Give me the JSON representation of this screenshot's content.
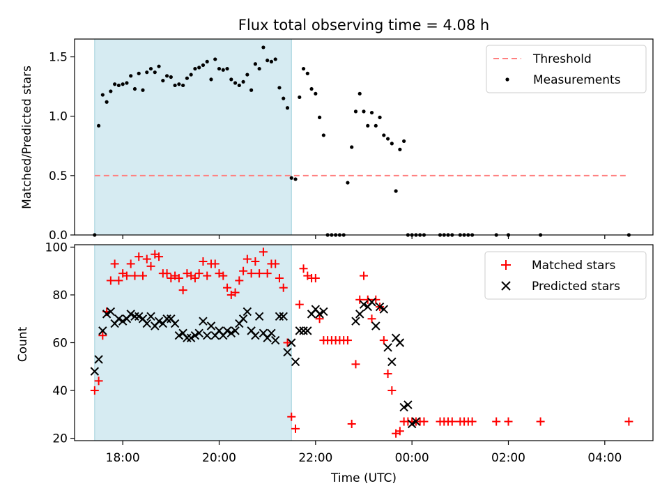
{
  "chart_data": [
    {
      "type": "scatter",
      "title": "Flux total observing time = 4.08 h",
      "xlabel": "",
      "ylabel": "Matched/Predicted stars",
      "xlim": [
        "17:00",
        "05:00"
      ],
      "ylim": [
        0,
        1.65
      ],
      "yticks": [
        0.0,
        0.5,
        1.0,
        1.5
      ],
      "ytick_labels": [
        "0.0",
        "0.5",
        "1.0",
        "1.5"
      ],
      "shaded_interval": [
        "17:25",
        "21:30"
      ],
      "legend_position": "top-right",
      "series": [
        {
          "name": "Threshold",
          "kind": "dashed-line",
          "color": "#ff7f7f",
          "x": [
            "17:25",
            "04:30"
          ],
          "y": [
            0.5,
            0.5
          ]
        },
        {
          "name": "Measurements",
          "kind": "dots",
          "color": "#000000",
          "x": [
            "17:25",
            "17:30",
            "17:35",
            "17:40",
            "17:45",
            "17:50",
            "17:55",
            "18:00",
            "18:05",
            "18:10",
            "18:15",
            "18:20",
            "18:25",
            "18:30",
            "18:35",
            "18:40",
            "18:45",
            "18:50",
            "18:55",
            "19:00",
            "19:05",
            "19:10",
            "19:15",
            "19:20",
            "19:25",
            "19:30",
            "19:35",
            "19:40",
            "19:45",
            "19:50",
            "19:55",
            "20:00",
            "20:05",
            "20:10",
            "20:15",
            "20:20",
            "20:25",
            "20:30",
            "20:35",
            "20:40",
            "20:45",
            "20:50",
            "20:55",
            "21:00",
            "21:05",
            "21:10",
            "21:15",
            "21:20",
            "21:25",
            "21:30",
            "21:35",
            "21:40",
            "21:45",
            "21:50",
            "21:55",
            "22:00",
            "22:05",
            "22:10",
            "22:15",
            "22:20",
            "22:25",
            "22:30",
            "22:35",
            "22:40",
            "22:45",
            "22:50",
            "22:55",
            "23:00",
            "23:05",
            "23:10",
            "23:15",
            "23:20",
            "23:25",
            "23:30",
            "23:35",
            "23:40",
            "23:45",
            "23:50",
            "23:55",
            "00:00",
            "00:05",
            "00:10",
            "00:15",
            "00:35",
            "00:40",
            "00:45",
            "00:50",
            "01:00",
            "01:05",
            "01:10",
            "01:15",
            "01:45",
            "02:00",
            "02:40",
            "04:30"
          ],
          "y": [
            0.0,
            0.92,
            1.18,
            1.12,
            1.21,
            1.27,
            1.26,
            1.27,
            1.28,
            1.34,
            1.23,
            1.36,
            1.22,
            1.37,
            1.4,
            1.37,
            1.42,
            1.3,
            1.34,
            1.33,
            1.26,
            1.27,
            1.26,
            1.32,
            1.35,
            1.4,
            1.41,
            1.43,
            1.46,
            1.31,
            1.48,
            1.4,
            1.39,
            1.4,
            1.31,
            1.28,
            1.26,
            1.29,
            1.35,
            1.22,
            1.44,
            1.4,
            1.58,
            1.47,
            1.46,
            1.48,
            1.24,
            1.15,
            1.07,
            0.48,
            0.47,
            1.16,
            1.4,
            1.36,
            1.23,
            1.19,
            0.99,
            0.84,
            0.0,
            0.0,
            0.0,
            0.0,
            0.0,
            0.44,
            0.74,
            1.04,
            1.19,
            1.04,
            0.92,
            1.03,
            0.92,
            0.99,
            0.84,
            0.81,
            0.77,
            0.37,
            0.72,
            0.79,
            0.0,
            0.0,
            0.0,
            0.0,
            0.0,
            0.0,
            0.0,
            0.0,
            0.0,
            0.0,
            0.0,
            0.0,
            0.0,
            0.0,
            0.0,
            0.0,
            0.0
          ]
        }
      ]
    },
    {
      "type": "scatter",
      "title": "",
      "xlabel": "Time (UTC)",
      "ylabel": "Count",
      "xlim": [
        "17:00",
        "05:00"
      ],
      "ylim": [
        19,
        101
      ],
      "yticks": [
        20,
        40,
        60,
        80,
        100
      ],
      "ytick_labels": [
        "20",
        "40",
        "60",
        "80",
        "100"
      ],
      "xticks": [
        "18:00",
        "20:00",
        "22:00",
        "00:00",
        "02:00",
        "04:00"
      ],
      "shaded_interval": [
        "17:25",
        "21:30"
      ],
      "legend_position": "top-right",
      "series": [
        {
          "name": "Matched stars",
          "kind": "plus",
          "color": "#ff0000",
          "x": [
            "17:25",
            "17:30",
            "17:35",
            "17:40",
            "17:45",
            "17:50",
            "17:55",
            "18:00",
            "18:05",
            "18:10",
            "18:15",
            "18:20",
            "18:25",
            "18:30",
            "18:35",
            "18:40",
            "18:45",
            "18:50",
            "18:55",
            "19:00",
            "19:05",
            "19:10",
            "19:15",
            "19:20",
            "19:25",
            "19:30",
            "19:35",
            "19:40",
            "19:45",
            "19:50",
            "19:55",
            "20:00",
            "20:05",
            "20:10",
            "20:15",
            "20:20",
            "20:25",
            "20:30",
            "20:35",
            "20:40",
            "20:45",
            "20:50",
            "20:55",
            "21:00",
            "21:05",
            "21:10",
            "21:15",
            "21:20",
            "21:25",
            "21:30",
            "21:35",
            "21:40",
            "21:45",
            "21:50",
            "21:55",
            "22:00",
            "22:05",
            "22:10",
            "22:15",
            "22:20",
            "22:25",
            "22:30",
            "22:35",
            "22:40",
            "22:45",
            "22:50",
            "22:55",
            "23:00",
            "23:05",
            "23:10",
            "23:15",
            "23:20",
            "23:25",
            "23:30",
            "23:35",
            "23:40",
            "23:45",
            "23:50",
            "23:55",
            "00:00",
            "00:05",
            "00:10",
            "00:15",
            "00:35",
            "00:40",
            "00:45",
            "00:50",
            "01:00",
            "01:05",
            "01:10",
            "01:15",
            "01:45",
            "02:00",
            "02:40",
            "04:30"
          ],
          "y": [
            40,
            44,
            63,
            73,
            86,
            93,
            86,
            89,
            88,
            93,
            88,
            96,
            88,
            95,
            92,
            97,
            96,
            89,
            89,
            87,
            88,
            87,
            82,
            89,
            88,
            87,
            89,
            94,
            88,
            93,
            93,
            89,
            88,
            83,
            80,
            81,
            86,
            90,
            95,
            89,
            94,
            89,
            98,
            89,
            93,
            93,
            87,
            83,
            60,
            29,
            24,
            76,
            91,
            88,
            87,
            87,
            70,
            61,
            61,
            61,
            61,
            61,
            61,
            61,
            26,
            51,
            78,
            88,
            78,
            70,
            78,
            75,
            61,
            47,
            40,
            22,
            23,
            27,
            27,
            27,
            27,
            27,
            27,
            27,
            27,
            27,
            27,
            27,
            27,
            27,
            27,
            27,
            27,
            27,
            27
          ]
        },
        {
          "name": "Predicted stars",
          "kind": "x",
          "color": "#000000",
          "x": [
            "17:25",
            "17:30",
            "17:35",
            "17:40",
            "17:45",
            "17:50",
            "17:55",
            "18:00",
            "18:05",
            "18:10",
            "18:15",
            "18:20",
            "18:25",
            "18:30",
            "18:35",
            "18:40",
            "18:45",
            "18:50",
            "18:55",
            "19:00",
            "19:05",
            "19:10",
            "19:15",
            "19:20",
            "19:25",
            "19:30",
            "19:35",
            "19:40",
            "19:45",
            "19:50",
            "19:55",
            "20:00",
            "20:05",
            "20:10",
            "20:15",
            "20:20",
            "20:25",
            "20:30",
            "20:35",
            "20:40",
            "20:45",
            "20:50",
            "20:55",
            "21:00",
            "21:05",
            "21:10",
            "21:15",
            "21:20",
            "21:25",
            "21:30",
            "21:35",
            "21:40",
            "21:45",
            "21:50",
            "21:55",
            "22:00",
            "22:05",
            "22:10",
            "22:50",
            "22:55",
            "23:00",
            "23:05",
            "23:10",
            "23:15",
            "23:20",
            "23:25",
            "23:30",
            "23:35",
            "23:40",
            "23:45",
            "23:50",
            "23:55",
            "00:00",
            "00:05"
          ],
          "y": [
            48,
            53,
            65,
            72,
            73,
            68,
            70,
            69,
            70,
            72,
            71,
            71,
            70,
            68,
            71,
            67,
            69,
            68,
            70,
            70,
            68,
            63,
            64,
            62,
            62,
            63,
            64,
            69,
            63,
            67,
            63,
            65,
            63,
            65,
            64,
            65,
            68,
            70,
            73,
            65,
            63,
            71,
            64,
            62,
            64,
            61,
            71,
            71,
            56,
            60,
            52,
            65,
            65,
            65,
            72,
            74,
            72,
            73,
            69,
            72,
            76,
            75,
            77,
            67,
            75,
            74,
            58,
            52,
            62,
            60,
            33,
            34,
            26,
            27
          ]
        }
      ]
    }
  ]
}
